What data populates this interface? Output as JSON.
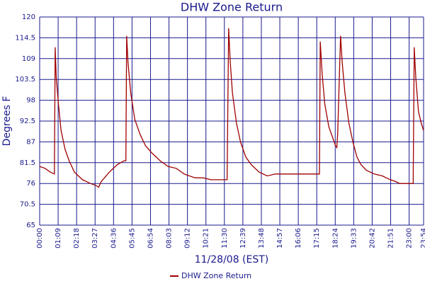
{
  "chart_data": {
    "type": "line",
    "title": "DHW Zone Return",
    "x_label": "11/28/08 (EST)",
    "y_label": "Degrees F",
    "xlim": [
      0,
      1434
    ],
    "xticks": [
      {
        "value": 0,
        "label": "00:00"
      },
      {
        "value": 69,
        "label": "01:09"
      },
      {
        "value": 138,
        "label": "02:18"
      },
      {
        "value": 207,
        "label": "03:27"
      },
      {
        "value": 276,
        "label": "04:36"
      },
      {
        "value": 345,
        "label": "05:45"
      },
      {
        "value": 414,
        "label": "06:54"
      },
      {
        "value": 483,
        "label": "08:03"
      },
      {
        "value": 552,
        "label": "09:12"
      },
      {
        "value": 621,
        "label": "10:21"
      },
      {
        "value": 690,
        "label": "11:30"
      },
      {
        "value": 759,
        "label": "12:39"
      },
      {
        "value": 828,
        "label": "13:48"
      },
      {
        "value": 897,
        "label": "14:57"
      },
      {
        "value": 966,
        "label": "16:06"
      },
      {
        "value": 1035,
        "label": "17:15"
      },
      {
        "value": 1104,
        "label": "18:24"
      },
      {
        "value": 1173,
        "label": "19:33"
      },
      {
        "value": 1242,
        "label": "20:42"
      },
      {
        "value": 1311,
        "label": "21:51"
      },
      {
        "value": 1380,
        "label": "23:00"
      },
      {
        "value": 1434,
        "label": "23:54"
      }
    ],
    "ylim": [
      65,
      120
    ],
    "yticks": [
      65,
      70.5,
      76,
      81.5,
      87,
      92.5,
      98,
      103.5,
      109,
      114.5,
      120
    ],
    "grid": true,
    "series": [
      {
        "name": "DHW Zone Return",
        "color": "#a00000",
        "x": [
          0,
          20,
          40,
          55,
          58,
          62,
          70,
          80,
          95,
          110,
          130,
          160,
          190,
          210,
          220,
          230,
          260,
          290,
          315,
          322,
          325,
          330,
          340,
          355,
          375,
          395,
          420,
          450,
          480,
          510,
          540,
          580,
          610,
          640,
          665,
          700,
          706,
          712,
          720,
          735,
          750,
          770,
          790,
          820,
          850,
          880,
          920,
          960,
          1000,
          1045,
          1048,
          1055,
          1065,
          1080,
          1095,
          1105,
          1110,
          1113,
          1124,
          1130,
          1140,
          1155,
          1170,
          1185,
          1200,
          1220,
          1250,
          1280,
          1310,
          1330,
          1345,
          1395,
          1399,
          1405,
          1415,
          1425,
          1434
        ],
        "values": [
          80.5,
          80,
          79,
          78.5,
          112,
          104,
          97,
          90,
          85,
          82,
          79,
          77,
          76,
          75.5,
          75,
          76.5,
          79,
          81,
          82,
          82,
          115,
          108,
          100,
          93,
          89,
          86,
          84,
          82,
          80.5,
          80,
          78.5,
          77.5,
          77.5,
          77,
          77,
          77,
          117,
          108,
          100,
          92,
          87,
          83,
          81,
          79,
          78,
          78.5,
          78.5,
          78.5,
          78.5,
          78.5,
          113.5,
          105,
          97,
          91,
          88,
          86,
          85.5,
          89,
          115,
          108,
          100,
          92,
          87,
          83,
          81,
          79.5,
          78.5,
          78,
          77,
          76.5,
          76,
          76,
          112,
          104,
          95,
          92,
          90
        ]
      }
    ]
  }
}
